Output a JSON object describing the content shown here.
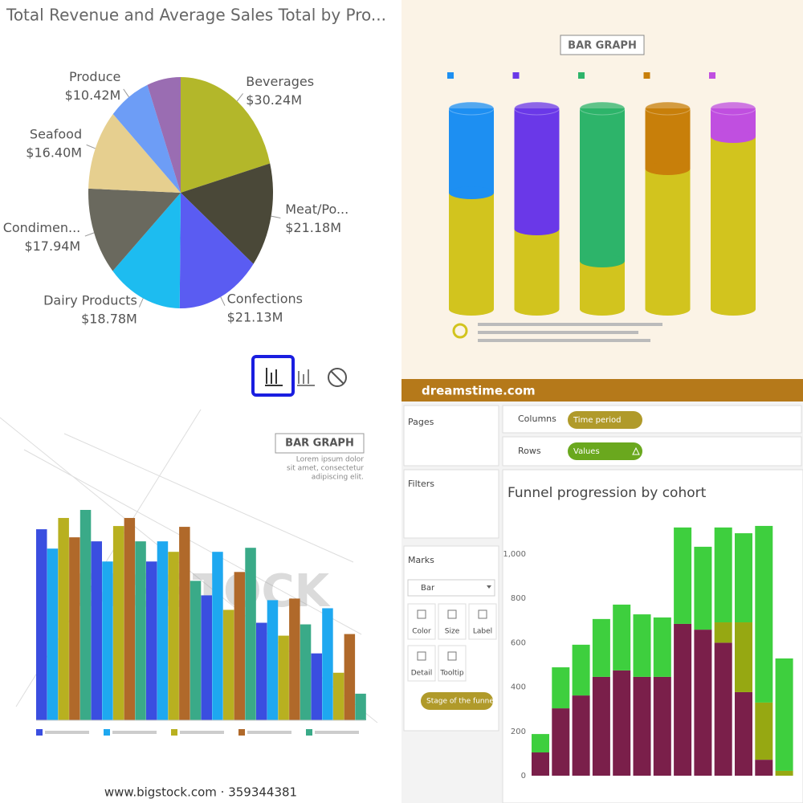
{
  "chart_data": [
    {
      "type": "pie",
      "title": "Total Revenue and Average Sales Total by Pro...",
      "categories": [
        "Beverages",
        "Meat/Po...",
        "Confections",
        "Dairy Products",
        "Condimen...",
        "Seafood",
        "Produce",
        null
      ],
      "values": [
        30.24,
        21.18,
        21.13,
        18.78,
        17.94,
        16.4,
        10.42,
        8.5
      ],
      "value_labels": [
        "$30.24M",
        "$21.18M",
        "$21.13M",
        "$18.78M",
        "$17.94M",
        "$16.40M",
        "$10.42M",
        null
      ],
      "colors": [
        "#b3b72a",
        "#4a4838",
        "#5a5cf2",
        "#1dbcf0",
        "#6a695e",
        "#e6cf8f",
        "#6d9df6",
        "#9a6db2"
      ]
    },
    {
      "type": "cylinder",
      "title": "BAR GRAPH",
      "footer": "dreamstime.com",
      "stacked": true,
      "series": [
        {
          "color": "#d2c41e",
          "values": [
            58,
            40,
            24,
            70,
            86
          ]
        },
        {
          "colors": [
            "#1d8ff2",
            "#6a38e8",
            "#2db46a",
            "#c87f0a",
            "#c04fe0"
          ],
          "values": [
            42,
            60,
            76,
            30,
            14
          ]
        }
      ]
    },
    {
      "type": "grouped_bar",
      "title": "BAR GRAPH",
      "subtitle": [
        "Lorem ipsum dolor",
        "sit amet, consectetur",
        "adipiscing elit."
      ],
      "watermark": "BIGSTOCK",
      "footer": "www.bigstock.com · 359344381",
      "series": [
        {
          "color": "#3a4ee0",
          "values": [
            237,
            222,
            197,
            155,
            121,
            83
          ]
        },
        {
          "color": "#1ea8f0",
          "values": [
            213,
            197,
            222,
            209,
            149,
            139
          ]
        },
        {
          "color": "#b8b020",
          "values": [
            251,
            241,
            209,
            137,
            105,
            59
          ]
        },
        {
          "color": "#b0692a",
          "values": [
            227,
            251,
            240,
            184,
            151,
            107
          ]
        },
        {
          "color": "#3aaa88",
          "values": [
            261,
            222,
            173,
            214,
            119,
            33
          ]
        }
      ]
    },
    {
      "type": "stacked_bar",
      "title": "Funnel progression by cohort",
      "grid": false,
      "ylim": [
        0,
        1150
      ],
      "yticks": [
        0,
        200,
        400,
        600,
        800,
        {
          "value": 1000,
          "label": "1,000"
        }
      ],
      "series": [
        {
          "color": "#7a1f4a",
          "values": [
            105,
            304,
            362,
            446,
            475,
            446,
            446,
            685,
            659,
            600,
            377,
            72,
            0
          ]
        },
        {
          "color": "#96a812",
          "values": [
            0,
            0,
            0,
            0,
            0,
            0,
            0,
            0,
            0,
            92,
            315,
            258,
            22
          ]
        },
        {
          "color": "#3ecf3e",
          "values": [
            83,
            185,
            229,
            261,
            297,
            282,
            268,
            435,
            374,
            428,
            402,
            797,
            507
          ]
        }
      ]
    }
  ],
  "tableau_ui": {
    "pages": "Pages",
    "filters": "Filters",
    "marks": "Marks",
    "columns": "Columns",
    "columns_pill": "Time period",
    "rows": "Rows",
    "rows_pill": "Values",
    "mark_type": "Bar",
    "mark_buttons": [
      "Color",
      "Size",
      "Label",
      "Detail",
      "Tooltip"
    ],
    "detail_pill": "Stage of the funnel"
  }
}
